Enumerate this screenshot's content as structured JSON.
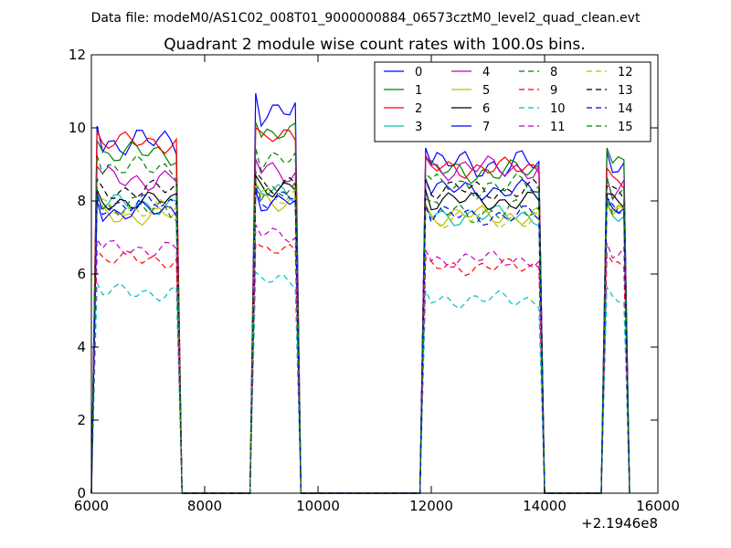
{
  "header": {
    "data_file": "Data file: modeM0/AS1C02_008T01_9000000884_06573cztM0_level2_quad_clean.evt"
  },
  "chart_data": {
    "type": "line",
    "title": "Quadrant 2 module wise count rates with 100.0s bins.",
    "xlabel": "",
    "ylabel": "",
    "x_offset_label": "+2.1946e8",
    "xlim": [
      6000,
      16000
    ],
    "ylim": [
      0,
      12
    ],
    "x_ticks": [
      6000,
      8000,
      10000,
      12000,
      14000,
      16000
    ],
    "x_tick_labels": [
      "6000",
      "8000",
      "10000",
      "12000",
      "14000",
      "16000"
    ],
    "y_ticks": [
      0,
      2,
      4,
      6,
      8,
      10,
      12
    ],
    "y_tick_labels": [
      "0",
      "2",
      "4",
      "6",
      "8",
      "10",
      "12"
    ],
    "grid": false,
    "legend_position": "top-right",
    "segments": [
      {
        "start": 6100,
        "end": 7500
      },
      {
        "start": 8900,
        "end": 9600
      },
      {
        "start": 11900,
        "end": 13900
      },
      {
        "start": 15100,
        "end": 15400
      }
    ],
    "series": [
      {
        "name": "0",
        "color": "#0000ff",
        "dash": "solid",
        "levels": [
          9.6,
          10.5,
          9.0,
          8.9
        ],
        "amp": 0.45
      },
      {
        "name": "1",
        "color": "#008000",
        "dash": "solid",
        "levels": [
          9.3,
          9.8,
          8.8,
          9.1
        ],
        "amp": 0.35
      },
      {
        "name": "2",
        "color": "#ff0000",
        "dash": "solid",
        "levels": [
          9.6,
          9.7,
          8.9,
          8.6
        ],
        "amp": 0.3
      },
      {
        "name": "3",
        "color": "#00bfbf",
        "dash": "solid",
        "levels": [
          7.9,
          8.2,
          7.6,
          7.7
        ],
        "amp": 0.3
      },
      {
        "name": "4",
        "color": "#bf00bf",
        "dash": "solid",
        "levels": [
          8.6,
          8.8,
          8.9,
          8.3
        ],
        "amp": 0.35
      },
      {
        "name": "5",
        "color": "#bfbf00",
        "dash": "solid",
        "levels": [
          7.6,
          8.0,
          7.6,
          7.6
        ],
        "amp": 0.3
      },
      {
        "name": "6",
        "color": "#000000",
        "dash": "solid",
        "levels": [
          8.0,
          8.4,
          8.0,
          7.9
        ],
        "amp": 0.3
      },
      {
        "name": "7",
        "color": "#0000ff",
        "dash": "solid",
        "levels": [
          7.7,
          8.0,
          8.3,
          7.8
        ],
        "amp": 0.3
      },
      {
        "name": "8",
        "color": "#008000",
        "dash": "dashed",
        "levels": [
          7.8,
          8.2,
          7.7,
          7.8
        ],
        "amp": 0.35
      },
      {
        "name": "9",
        "color": "#ff0000",
        "dash": "dashed",
        "levels": [
          6.4,
          6.6,
          6.2,
          6.3
        ],
        "amp": 0.25
      },
      {
        "name": "10",
        "color": "#00bfbf",
        "dash": "dashed",
        "levels": [
          5.5,
          5.8,
          5.3,
          5.4
        ],
        "amp": 0.25
      },
      {
        "name": "11",
        "color": "#bf00bf",
        "dash": "dashed",
        "levels": [
          6.7,
          7.1,
          6.4,
          6.6
        ],
        "amp": 0.25
      },
      {
        "name": "12",
        "color": "#bfbf00",
        "dash": "dashed",
        "levels": [
          7.8,
          8.2,
          7.5,
          7.6
        ],
        "amp": 0.3
      },
      {
        "name": "13",
        "color": "#000000",
        "dash": "dashed",
        "levels": [
          8.3,
          8.5,
          8.3,
          8.1
        ],
        "amp": 0.3
      },
      {
        "name": "14",
        "color": "#0000ff",
        "dash": "dashed",
        "levels": [
          7.9,
          8.1,
          7.6,
          7.8
        ],
        "amp": 0.3
      },
      {
        "name": "15",
        "color": "#008000",
        "dash": "dashed",
        "levels": [
          8.9,
          9.1,
          8.4,
          8.3
        ],
        "amp": 0.35
      }
    ]
  }
}
